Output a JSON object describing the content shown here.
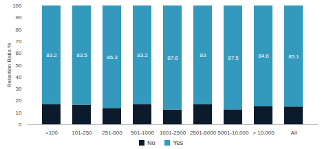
{
  "chart_data": {
    "type": "bar",
    "stacked": true,
    "categories": [
      "<100",
      "101-250",
      "251-500",
      "501-1000",
      "1001-2500",
      "2501-5000",
      "5001-10,000",
      "> 10,000",
      "All"
    ],
    "series": [
      {
        "name": "No",
        "color": "#0c1b2c",
        "values": [
          16.8,
          16.5,
          13.7,
          16.8,
          12.4,
          17,
          12.5,
          15.4,
          14.9
        ]
      },
      {
        "name": "Yes",
        "color": "#3399bd",
        "data_labels": true,
        "values": [
          83.2,
          83.5,
          86.3,
          83.2,
          87.6,
          83,
          87.5,
          84.6,
          85.1
        ]
      }
    ],
    "y_label": "Retention Ratio %",
    "ylim": [
      0,
      100
    ],
    "yticks": [
      0,
      10,
      20,
      30,
      40,
      50,
      60,
      70,
      80,
      90,
      100
    ],
    "grid": false,
    "legend": "bottom"
  }
}
